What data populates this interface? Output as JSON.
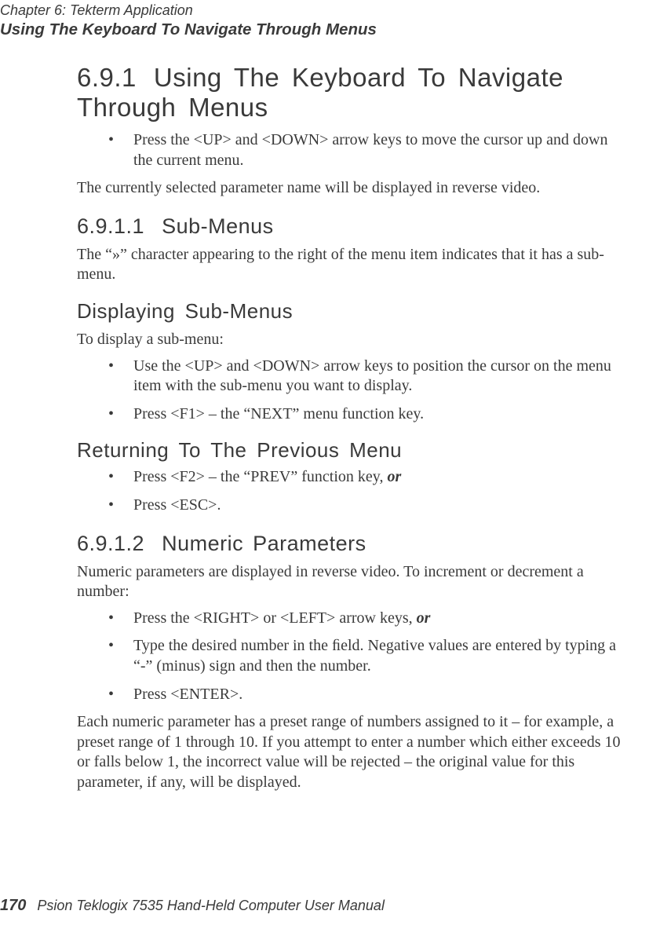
{
  "runningHead": {
    "chapter": "Chapter  6:  Tekterm Application",
    "section": "Using The Keyboard To Navigate Through Menus"
  },
  "headings": {
    "h691_num": "6.9.1",
    "h691_title": "Using  The  Keyboard  To  Navigate  Through  Menus",
    "h6911_num": "6.9.1.1",
    "h6911_title": "Sub-Menus",
    "dispSub": "Displaying  Sub-Menus",
    "retPrev": "Returning  To  The  Previous  Menu",
    "h6912_num": "6.9.1.2",
    "h6912_title": "Numeric  Parameters"
  },
  "paras": {
    "p1_bullet": "Press the <UP> and <DOWN> arrow keys to move the cursor up and down the current menu.",
    "p2": "The currently selected parameter name will be displayed in reverse video.",
    "p3": "The “»” character appearing to the right of the menu item indicates that it has a sub-menu.",
    "p4": "To display a sub-menu:",
    "p5_b1": "Use the <UP> and <DOWN> arrow keys to position the cursor on the menu item with the sub-menu you want to display.",
    "p5_b2": "Press <F1> – the “NEXT” menu function key.",
    "p6_b1_pre": "Press <F2> – the “PREV” function key, ",
    "p6_b1_or": "or",
    "p6_b2": "Press <ESC>.",
    "p7": "Numeric parameters are displayed in reverse video. To increment or decrement a number:",
    "p8_b1_pre": "Press the <RIGHT> or <LEFT> arrow keys, ",
    "p8_b1_or": "or",
    "p8_b2": "Type the desired number in the ﬁeld. Negative values are entered by typing a “-” (minus) sign and then the number.",
    "p8_b3": "Press <ENTER>.",
    "p9": "Each numeric parameter has a preset range of numbers assigned to it – for example, a preset range of 1 through 10. If you attempt to enter a number which either exceeds 10 or falls below 1, the incorrect value will be rejected – the original value for this parameter, if any, will be displayed."
  },
  "footer": {
    "pageNumber": "170",
    "manual": "Psion Teklogix 7535 Hand-Held Computer User Manual"
  }
}
